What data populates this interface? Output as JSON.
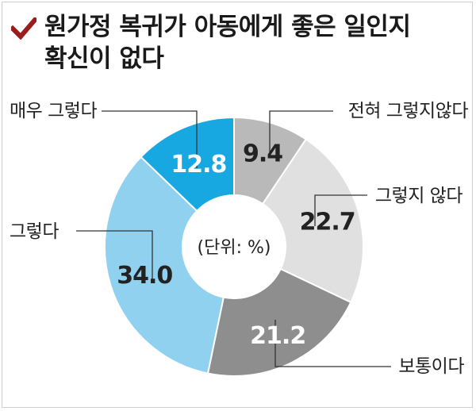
{
  "title_line1": "원가정 복귀가 아동에게 좋은 일인지",
  "title_line2": "확신이 없다",
  "colors": {
    "accent": "#9b1c1c",
    "slices": [
      "#b9b9b9",
      "#e0e0e0",
      "#8e8e8e",
      "#8fd1ef",
      "#17a8e2"
    ]
  },
  "chart_data": {
    "type": "pie",
    "variant": "donut",
    "title": "원가정 복귀가 아동에게 좋은 일인지 확신이 없다",
    "center_label": "(단위: %)",
    "categories": [
      "전혀 그렇지않다",
      "그렇지 않다",
      "보통이다",
      "그렇다",
      "매우 그렇다"
    ],
    "values": [
      9.4,
      22.7,
      21.2,
      34.0,
      12.8
    ],
    "value_labels": [
      "9.4",
      "22.7",
      "21.2",
      "34.0",
      "12.8"
    ],
    "start": "top, clockwise"
  }
}
